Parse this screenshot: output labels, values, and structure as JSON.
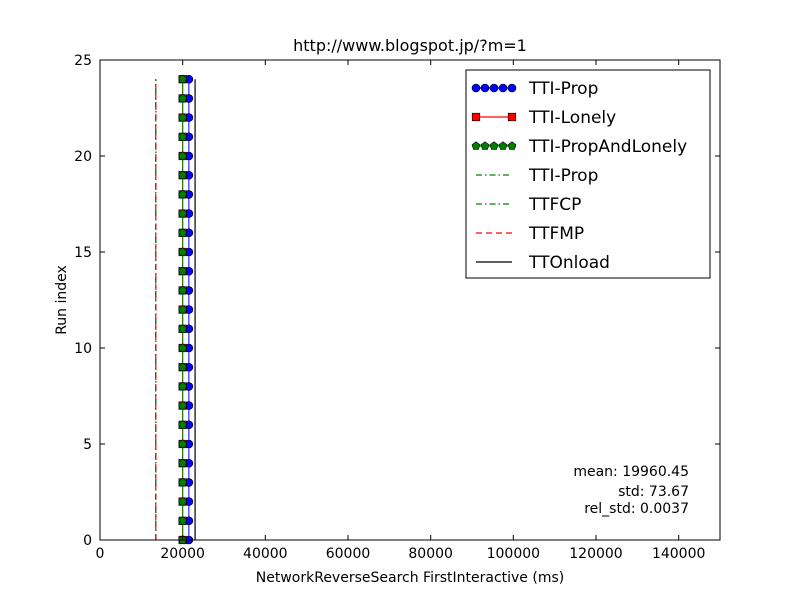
{
  "chart_data": {
    "type": "line",
    "title": "http://www.blogspot.jp/?m=1",
    "xlabel": "NetworkReverseSearch FirstInteractive (ms)",
    "ylabel": "Run index",
    "xlim": [
      0,
      150000
    ],
    "ylim": [
      0,
      25
    ],
    "xticks": [
      0,
      20000,
      40000,
      60000,
      80000,
      100000,
      120000,
      140000
    ],
    "xtick_labels": [
      "0",
      "20000",
      "40000",
      "60000",
      "80000",
      "100000",
      "120000",
      "140000"
    ],
    "yticks": [
      0,
      5,
      10,
      15,
      20,
      25
    ],
    "ytick_labels": [
      "0",
      "5",
      "10",
      "15",
      "20",
      "25"
    ],
    "grid": false,
    "legend_position": "top-right",
    "series": [
      {
        "name": "TTI-Prop",
        "color": "#0000ff",
        "style": "solid",
        "marker": "circle",
        "points": [
          [
            21500,
            0
          ],
          [
            21500,
            1
          ],
          [
            21500,
            2
          ],
          [
            21500,
            3
          ],
          [
            21500,
            4
          ],
          [
            21500,
            5
          ],
          [
            21500,
            6
          ],
          [
            21500,
            7
          ],
          [
            21500,
            8
          ],
          [
            21500,
            9
          ],
          [
            21500,
            10
          ],
          [
            21500,
            11
          ],
          [
            21500,
            12
          ],
          [
            21500,
            13
          ],
          [
            21500,
            14
          ],
          [
            21500,
            15
          ],
          [
            21500,
            16
          ],
          [
            21500,
            17
          ],
          [
            21500,
            18
          ],
          [
            21500,
            19
          ],
          [
            21500,
            20
          ],
          [
            21500,
            21
          ],
          [
            21500,
            22
          ],
          [
            21500,
            23
          ],
          [
            21500,
            24
          ]
        ]
      },
      {
        "name": "TTI-Lonely",
        "color": "#ff0000",
        "style": "solid",
        "marker": "square",
        "points": [
          [
            20000,
            0
          ],
          [
            20000,
            1
          ],
          [
            20000,
            2
          ],
          [
            20000,
            3
          ],
          [
            20000,
            4
          ],
          [
            20000,
            5
          ],
          [
            20000,
            6
          ],
          [
            20000,
            7
          ],
          [
            20000,
            8
          ],
          [
            20000,
            9
          ],
          [
            20000,
            10
          ],
          [
            20000,
            11
          ],
          [
            20000,
            12
          ],
          [
            20000,
            13
          ],
          [
            20000,
            14
          ],
          [
            20000,
            15
          ],
          [
            20000,
            16
          ],
          [
            20000,
            17
          ],
          [
            20000,
            18
          ],
          [
            20000,
            19
          ],
          [
            20000,
            20
          ],
          [
            20000,
            21
          ],
          [
            20000,
            22
          ],
          [
            20000,
            23
          ],
          [
            20000,
            24
          ]
        ]
      },
      {
        "name": "TTI-PropAndLonely",
        "color": "#008000",
        "style": "solid",
        "marker": "pentagon",
        "points": [
          [
            20000,
            0
          ],
          [
            20000,
            1
          ],
          [
            20000,
            2
          ],
          [
            20000,
            3
          ],
          [
            20000,
            4
          ],
          [
            20000,
            5
          ],
          [
            20000,
            6
          ],
          [
            20000,
            7
          ],
          [
            20000,
            8
          ],
          [
            20000,
            9
          ],
          [
            20000,
            10
          ],
          [
            20000,
            11
          ],
          [
            20000,
            12
          ],
          [
            20000,
            13
          ],
          [
            20000,
            14
          ],
          [
            20000,
            15
          ],
          [
            20000,
            16
          ],
          [
            20000,
            17
          ],
          [
            20000,
            18
          ],
          [
            20000,
            19
          ],
          [
            20000,
            20
          ],
          [
            20000,
            21
          ],
          [
            20000,
            22
          ],
          [
            20000,
            23
          ],
          [
            20000,
            24
          ]
        ]
      },
      {
        "name": "TTI-Prop",
        "color": "#008000",
        "style": "dashdot",
        "marker": "none",
        "points": [
          [
            13500,
            0
          ],
          [
            13500,
            24
          ]
        ]
      },
      {
        "name": "TTFCP",
        "color": "#008000",
        "style": "dashdot",
        "marker": "none",
        "points": [
          [
            13500,
            0
          ],
          [
            13500,
            24
          ]
        ]
      },
      {
        "name": "TTFMP",
        "color": "#ff0000",
        "style": "dashed",
        "marker": "none",
        "points": [
          [
            13500,
            0
          ],
          [
            13500,
            24
          ]
        ]
      },
      {
        "name": "TTOnload",
        "color": "#000000",
        "style": "solid",
        "marker": "none",
        "points": [
          [
            23000,
            0
          ],
          [
            23000,
            1
          ],
          [
            23000,
            2
          ],
          [
            23000,
            3
          ],
          [
            23000,
            4
          ],
          [
            23000,
            5
          ],
          [
            23000,
            6
          ],
          [
            23000,
            7
          ],
          [
            23000,
            8
          ],
          [
            23000,
            9
          ],
          [
            23000,
            10
          ],
          [
            23000,
            11
          ],
          [
            23000,
            12
          ],
          [
            23000,
            13
          ],
          [
            23000,
            14
          ],
          [
            23000,
            15
          ],
          [
            23000,
            16
          ],
          [
            23000,
            17
          ],
          [
            23000,
            18
          ],
          [
            23000,
            19
          ],
          [
            23000,
            20
          ],
          [
            23000,
            21
          ],
          [
            23000,
            22
          ],
          [
            23000,
            23
          ],
          [
            23000,
            24
          ]
        ]
      }
    ],
    "annotations": [
      "mean: 19960.45",
      "std: 73.67",
      "rel_std: 0.0037"
    ]
  }
}
